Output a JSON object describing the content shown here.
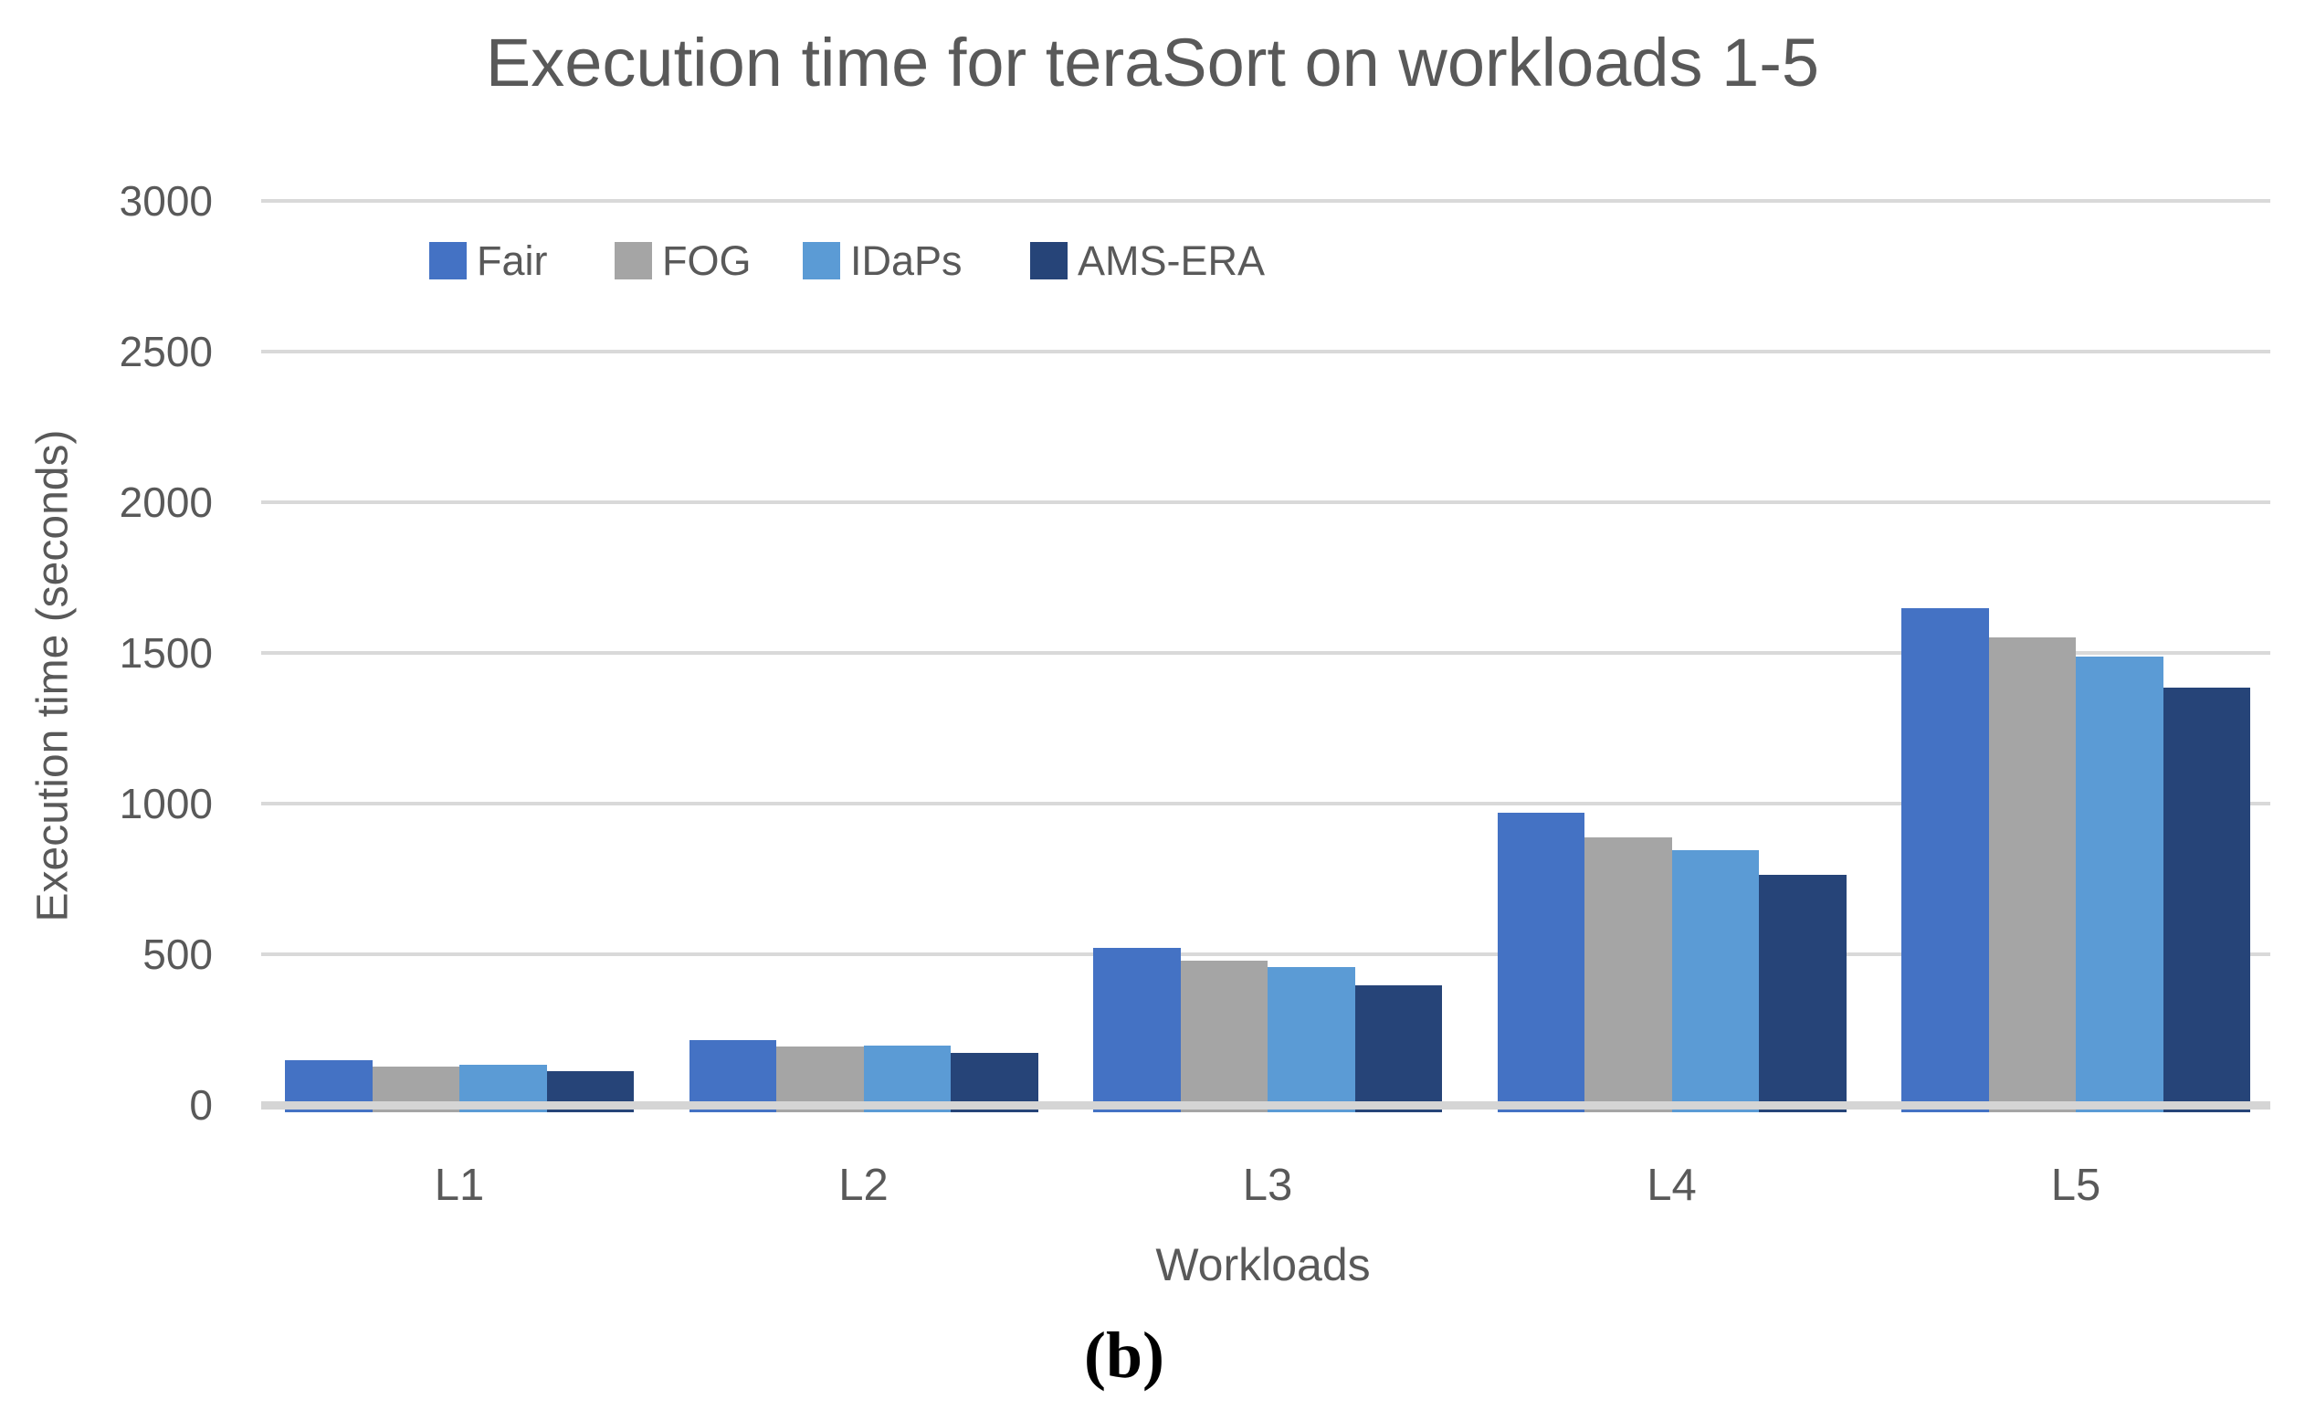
{
  "figure": {
    "caption": "(b)"
  },
  "chart_data": {
    "type": "bar",
    "title": "Execution time for teraSort on workloads 1-5",
    "xlabel": "Workloads",
    "ylabel": "Execution time (seconds)",
    "categories": [
      "L1",
      "L2",
      "L3",
      "L4",
      "L5"
    ],
    "series": [
      {
        "name": "Fair",
        "color": "#4472C4",
        "values": [
          150,
          215,
          520,
          970,
          1650
        ]
      },
      {
        "name": "FOG",
        "color": "#A5A5A5",
        "values": [
          128,
          194,
          478,
          888,
          1552
        ]
      },
      {
        "name": "IDaPs",
        "color": "#5B9BD5",
        "values": [
          133,
          196,
          458,
          846,
          1488
        ]
      },
      {
        "name": "AMS-ERA",
        "color": "#264478",
        "values": [
          112,
          172,
          398,
          764,
          1386
        ]
      }
    ],
    "ylim": [
      0,
      3000
    ],
    "yticks": [
      0,
      500,
      1000,
      1500,
      2000,
      2500,
      3000
    ],
    "grid": true,
    "legend_position": "top-left-inside",
    "colors": {
      "grid": "#D9D9D9",
      "axis_line": "#D5D5D5",
      "text": "#595959",
      "caption_text": "#000000"
    }
  }
}
